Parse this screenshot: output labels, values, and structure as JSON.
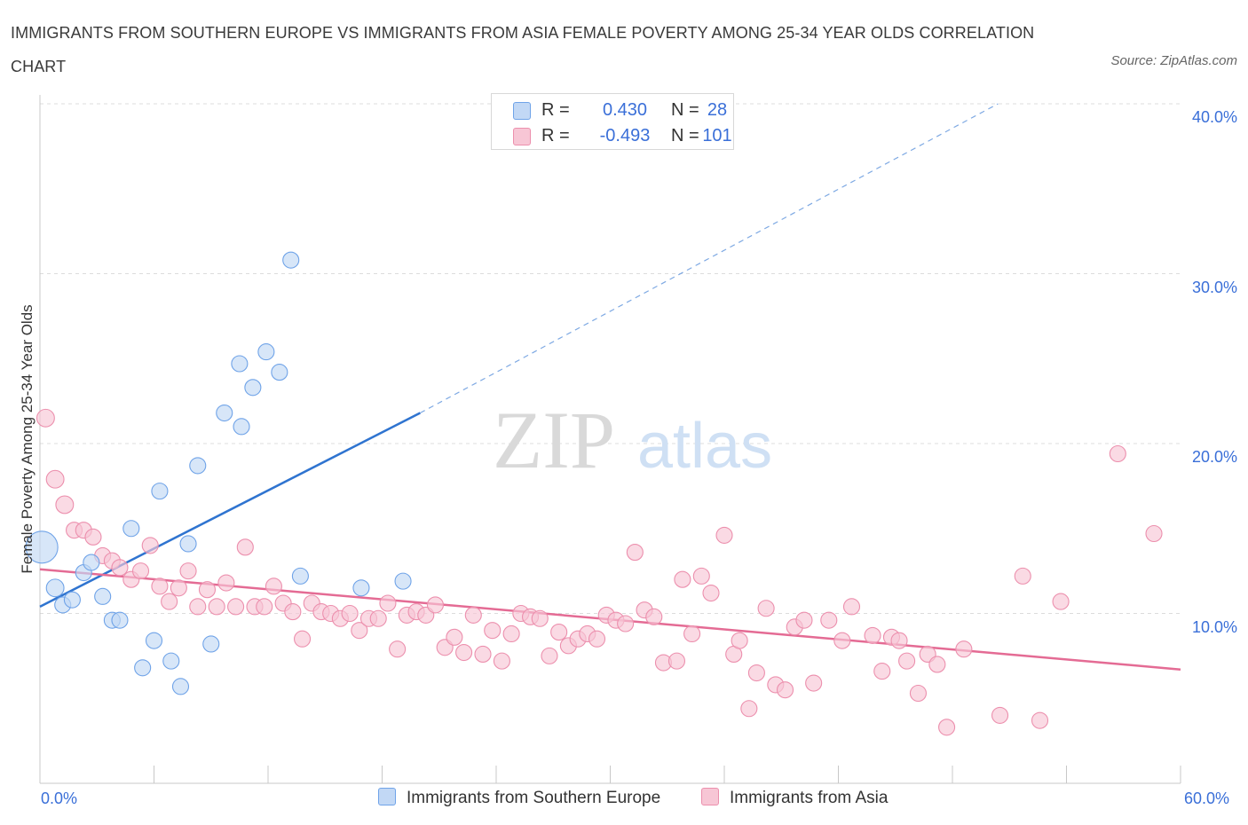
{
  "title": "IMMIGRANTS FROM SOUTHERN EUROPE VS IMMIGRANTS FROM ASIA FEMALE POVERTY AMONG 25-34 YEAR OLDS CORRELATION CHART",
  "source": "Source: ZipAtlas.com",
  "watermark": {
    "zip": "ZIP",
    "atlas": "atlas"
  },
  "legend_top": [
    {
      "r_label": "R =",
      "r_value": "0.430",
      "n_label": "N =",
      "n_value": "28",
      "color": "#a9c8f0"
    },
    {
      "r_label": "R =",
      "r_value": "-0.493",
      "n_label": "N =",
      "n_value": "101",
      "color": "#f6b9cb"
    }
  ],
  "chart_data": {
    "type": "scatter",
    "title": "IMMIGRANTS FROM SOUTHERN EUROPE VS IMMIGRANTS FROM ASIA FEMALE POVERTY AMONG 25-34 YEAR OLDS CORRELATION CHART",
    "xlabel": "",
    "ylabel": "Female Poverty Among 25-34 Year Olds",
    "xlim": [
      0,
      60
    ],
    "ylim": [
      0,
      40
    ],
    "x_tick_labels": [
      "0.0%",
      "60.0%"
    ],
    "y_ticks": [
      10,
      20,
      30,
      40
    ],
    "y_tick_labels": [
      "10.0%",
      "20.0%",
      "30.0%",
      "40.0%"
    ],
    "grid": true,
    "legend_position": "bottom",
    "series": [
      {
        "name": "Immigrants from Southern Europe",
        "color": "#6fa3e8",
        "fill": "#c2d8f5",
        "trend": {
          "x": [
            0,
            20
          ],
          "y": [
            10.4,
            21.8
          ],
          "extended_to": [
            50.4,
            40.0
          ]
        },
        "points": [
          {
            "x": 0.1,
            "y": 13.9,
            "s": 2.0
          },
          {
            "x": 0.8,
            "y": 11.5,
            "s": 1.1
          },
          {
            "x": 1.2,
            "y": 10.5,
            "s": 1.0
          },
          {
            "x": 1.7,
            "y": 10.8,
            "s": 1.0
          },
          {
            "x": 2.3,
            "y": 12.4,
            "s": 1.0
          },
          {
            "x": 2.7,
            "y": 13.0,
            "s": 1.0
          },
          {
            "x": 3.3,
            "y": 11.0,
            "s": 1.0
          },
          {
            "x": 3.8,
            "y": 9.6,
            "s": 1.0
          },
          {
            "x": 4.2,
            "y": 9.6,
            "s": 1.0
          },
          {
            "x": 4.8,
            "y": 15.0,
            "s": 1.0
          },
          {
            "x": 5.4,
            "y": 6.8,
            "s": 1.0
          },
          {
            "x": 6.0,
            "y": 8.4,
            "s": 1.0
          },
          {
            "x": 6.3,
            "y": 17.2,
            "s": 1.0
          },
          {
            "x": 6.9,
            "y": 7.2,
            "s": 1.0
          },
          {
            "x": 7.4,
            "y": 5.7,
            "s": 1.0
          },
          {
            "x": 7.8,
            "y": 14.1,
            "s": 1.0
          },
          {
            "x": 8.3,
            "y": 18.7,
            "s": 1.0
          },
          {
            "x": 9.0,
            "y": 8.2,
            "s": 1.0
          },
          {
            "x": 9.7,
            "y": 21.8,
            "s": 1.0
          },
          {
            "x": 10.5,
            "y": 24.7,
            "s": 1.0
          },
          {
            "x": 10.6,
            "y": 21.0,
            "s": 1.0
          },
          {
            "x": 11.2,
            "y": 23.3,
            "s": 1.0
          },
          {
            "x": 11.9,
            "y": 25.4,
            "s": 1.0
          },
          {
            "x": 12.6,
            "y": 24.2,
            "s": 1.0
          },
          {
            "x": 13.2,
            "y": 30.8,
            "s": 1.0
          },
          {
            "x": 13.7,
            "y": 12.2,
            "s": 1.0
          },
          {
            "x": 16.9,
            "y": 11.5,
            "s": 1.0
          },
          {
            "x": 19.1,
            "y": 11.9,
            "s": 1.0
          }
        ]
      },
      {
        "name": "Immigrants from Asia",
        "color": "#ec8fad",
        "fill": "#f7c6d5",
        "trend": {
          "x": [
            0,
            60
          ],
          "y": [
            12.6,
            6.7
          ]
        },
        "points": [
          {
            "x": 0.3,
            "y": 21.5,
            "s": 1.1
          },
          {
            "x": 0.8,
            "y": 17.9,
            "s": 1.1
          },
          {
            "x": 1.3,
            "y": 16.4,
            "s": 1.1
          },
          {
            "x": 1.8,
            "y": 14.9,
            "s": 1.0
          },
          {
            "x": 2.3,
            "y": 14.9,
            "s": 1.0
          },
          {
            "x": 2.8,
            "y": 14.5,
            "s": 1.0
          },
          {
            "x": 3.3,
            "y": 13.4,
            "s": 1.0
          },
          {
            "x": 3.8,
            "y": 13.1,
            "s": 1.0
          },
          {
            "x": 4.2,
            "y": 12.7,
            "s": 1.0
          },
          {
            "x": 4.8,
            "y": 12.0,
            "s": 1.0
          },
          {
            "x": 5.3,
            "y": 12.5,
            "s": 1.0
          },
          {
            "x": 5.8,
            "y": 14.0,
            "s": 1.0
          },
          {
            "x": 6.3,
            "y": 11.6,
            "s": 1.0
          },
          {
            "x": 6.8,
            "y": 10.7,
            "s": 1.0
          },
          {
            "x": 7.3,
            "y": 11.5,
            "s": 1.0
          },
          {
            "x": 7.8,
            "y": 12.5,
            "s": 1.0
          },
          {
            "x": 8.3,
            "y": 10.4,
            "s": 1.0
          },
          {
            "x": 8.8,
            "y": 11.4,
            "s": 1.0
          },
          {
            "x": 9.3,
            "y": 10.4,
            "s": 1.0
          },
          {
            "x": 9.8,
            "y": 11.8,
            "s": 1.0
          },
          {
            "x": 10.3,
            "y": 10.4,
            "s": 1.0
          },
          {
            "x": 10.8,
            "y": 13.9,
            "s": 1.0
          },
          {
            "x": 11.3,
            "y": 10.4,
            "s": 1.0
          },
          {
            "x": 11.8,
            "y": 10.4,
            "s": 1.0
          },
          {
            "x": 12.3,
            "y": 11.6,
            "s": 1.0
          },
          {
            "x": 12.8,
            "y": 10.6,
            "s": 1.0
          },
          {
            "x": 13.3,
            "y": 10.1,
            "s": 1.0
          },
          {
            "x": 13.8,
            "y": 8.5,
            "s": 1.0
          },
          {
            "x": 14.3,
            "y": 10.6,
            "s": 1.0
          },
          {
            "x": 14.8,
            "y": 10.1,
            "s": 1.0
          },
          {
            "x": 15.3,
            "y": 10.0,
            "s": 1.0
          },
          {
            "x": 15.8,
            "y": 9.7,
            "s": 1.0
          },
          {
            "x": 16.3,
            "y": 10.0,
            "s": 1.0
          },
          {
            "x": 16.8,
            "y": 9.0,
            "s": 1.0
          },
          {
            "x": 17.3,
            "y": 9.7,
            "s": 1.0
          },
          {
            "x": 17.8,
            "y": 9.7,
            "s": 1.0
          },
          {
            "x": 18.3,
            "y": 10.6,
            "s": 1.0
          },
          {
            "x": 18.8,
            "y": 7.9,
            "s": 1.0
          },
          {
            "x": 19.3,
            "y": 9.9,
            "s": 1.0
          },
          {
            "x": 19.8,
            "y": 10.1,
            "s": 1.0
          },
          {
            "x": 20.3,
            "y": 9.9,
            "s": 1.0
          },
          {
            "x": 20.8,
            "y": 10.5,
            "s": 1.0
          },
          {
            "x": 21.3,
            "y": 8.0,
            "s": 1.0
          },
          {
            "x": 21.8,
            "y": 8.6,
            "s": 1.0
          },
          {
            "x": 22.3,
            "y": 7.7,
            "s": 1.0
          },
          {
            "x": 22.8,
            "y": 9.9,
            "s": 1.0
          },
          {
            "x": 23.3,
            "y": 7.6,
            "s": 1.0
          },
          {
            "x": 23.8,
            "y": 9.0,
            "s": 1.0
          },
          {
            "x": 24.3,
            "y": 7.2,
            "s": 1.0
          },
          {
            "x": 24.8,
            "y": 8.8,
            "s": 1.0
          },
          {
            "x": 25.3,
            "y": 10.0,
            "s": 1.0
          },
          {
            "x": 25.8,
            "y": 9.8,
            "s": 1.0
          },
          {
            "x": 26.3,
            "y": 9.7,
            "s": 1.0
          },
          {
            "x": 26.8,
            "y": 7.5,
            "s": 1.0
          },
          {
            "x": 27.3,
            "y": 8.9,
            "s": 1.0
          },
          {
            "x": 27.8,
            "y": 8.1,
            "s": 1.0
          },
          {
            "x": 28.3,
            "y": 8.5,
            "s": 1.0
          },
          {
            "x": 28.8,
            "y": 8.8,
            "s": 1.0
          },
          {
            "x": 29.3,
            "y": 8.5,
            "s": 1.0
          },
          {
            "x": 29.8,
            "y": 9.9,
            "s": 1.0
          },
          {
            "x": 30.3,
            "y": 9.6,
            "s": 1.0
          },
          {
            "x": 30.8,
            "y": 9.4,
            "s": 1.0
          },
          {
            "x": 31.3,
            "y": 13.6,
            "s": 1.0
          },
          {
            "x": 31.8,
            "y": 10.2,
            "s": 1.0
          },
          {
            "x": 32.3,
            "y": 9.8,
            "s": 1.0
          },
          {
            "x": 32.8,
            "y": 7.1,
            "s": 1.0
          },
          {
            "x": 33.5,
            "y": 7.2,
            "s": 1.0
          },
          {
            "x": 33.8,
            "y": 12.0,
            "s": 1.0
          },
          {
            "x": 34.3,
            "y": 8.8,
            "s": 1.0
          },
          {
            "x": 34.8,
            "y": 12.2,
            "s": 1.0
          },
          {
            "x": 35.3,
            "y": 11.2,
            "s": 1.0
          },
          {
            "x": 36.0,
            "y": 14.6,
            "s": 1.0
          },
          {
            "x": 36.5,
            "y": 7.6,
            "s": 1.0
          },
          {
            "x": 36.8,
            "y": 8.4,
            "s": 1.0
          },
          {
            "x": 37.3,
            "y": 4.4,
            "s": 1.0
          },
          {
            "x": 37.7,
            "y": 6.5,
            "s": 1.0
          },
          {
            "x": 38.2,
            "y": 10.3,
            "s": 1.0
          },
          {
            "x": 38.7,
            "y": 5.8,
            "s": 1.0
          },
          {
            "x": 39.2,
            "y": 5.5,
            "s": 1.0
          },
          {
            "x": 39.7,
            "y": 9.2,
            "s": 1.0
          },
          {
            "x": 40.2,
            "y": 9.6,
            "s": 1.0
          },
          {
            "x": 40.7,
            "y": 5.9,
            "s": 1.0
          },
          {
            "x": 41.5,
            "y": 9.6,
            "s": 1.0
          },
          {
            "x": 42.2,
            "y": 8.4,
            "s": 1.0
          },
          {
            "x": 42.7,
            "y": 10.4,
            "s": 1.0
          },
          {
            "x": 43.8,
            "y": 8.7,
            "s": 1.0
          },
          {
            "x": 44.3,
            "y": 6.6,
            "s": 1.0
          },
          {
            "x": 44.8,
            "y": 8.6,
            "s": 1.0
          },
          {
            "x": 45.2,
            "y": 8.4,
            "s": 1.0
          },
          {
            "x": 45.6,
            "y": 7.2,
            "s": 1.0
          },
          {
            "x": 46.2,
            "y": 5.3,
            "s": 1.0
          },
          {
            "x": 46.7,
            "y": 7.6,
            "s": 1.0
          },
          {
            "x": 47.2,
            "y": 7.0,
            "s": 1.0
          },
          {
            "x": 47.7,
            "y": 3.3,
            "s": 1.0
          },
          {
            "x": 48.6,
            "y": 7.9,
            "s": 1.0
          },
          {
            "x": 50.5,
            "y": 4.0,
            "s": 1.0
          },
          {
            "x": 51.7,
            "y": 12.2,
            "s": 1.0
          },
          {
            "x": 52.6,
            "y": 3.7,
            "s": 1.0
          },
          {
            "x": 53.7,
            "y": 10.7,
            "s": 1.0
          },
          {
            "x": 56.7,
            "y": 19.4,
            "s": 1.0
          },
          {
            "x": 58.6,
            "y": 14.7,
            "s": 1.0
          }
        ]
      }
    ]
  }
}
